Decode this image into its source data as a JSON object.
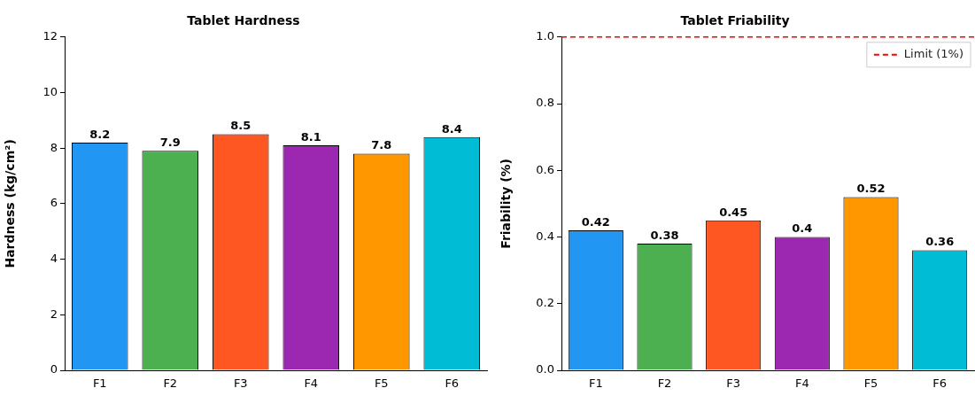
{
  "chart_data": [
    {
      "type": "bar",
      "title": "Tablet Hardness",
      "ylabel": "Hardness (kg/cm²)",
      "categories": [
        "F1",
        "F2",
        "F3",
        "F4",
        "F5",
        "F6"
      ],
      "values": [
        8.2,
        7.9,
        8.5,
        8.1,
        7.8,
        8.4
      ],
      "colors": [
        "#2196f3",
        "#4caf50",
        "#ff5722",
        "#9c27b0",
        "#ff9800",
        "#00bcd4"
      ],
      "ylim": [
        0,
        12
      ],
      "yticks": [
        0,
        2,
        4,
        6,
        8,
        10,
        12
      ],
      "grid": false,
      "data_labels": true
    },
    {
      "type": "bar",
      "title": "Tablet Friability",
      "ylabel": "Friability (%)",
      "categories": [
        "F1",
        "F2",
        "F3",
        "F4",
        "F5",
        "F6"
      ],
      "values": [
        0.42,
        0.38,
        0.45,
        0.4,
        0.52,
        0.36
      ],
      "colors": [
        "#2196f3",
        "#4caf50",
        "#ff5722",
        "#9c27b0",
        "#ff9800",
        "#00bcd4"
      ],
      "ylim": [
        0,
        1.0
      ],
      "yticks": [
        {
          "value": 0,
          "label": "0.0"
        },
        {
          "value": 0.2,
          "label": "0.2"
        },
        {
          "value": 0.4,
          "label": "0.4"
        },
        {
          "value": 0.6,
          "label": "0.6"
        },
        {
          "value": 0.8,
          "label": "0.8"
        },
        {
          "value": 1.0,
          "label": "1.0"
        }
      ],
      "grid": false,
      "data_labels": true,
      "legend": "top right",
      "ref_lines": [
        {
          "axis": "y",
          "value": 1.0,
          "label": "Limit (1%)",
          "color": "#ff0000",
          "line_style": "dashed"
        }
      ]
    }
  ]
}
